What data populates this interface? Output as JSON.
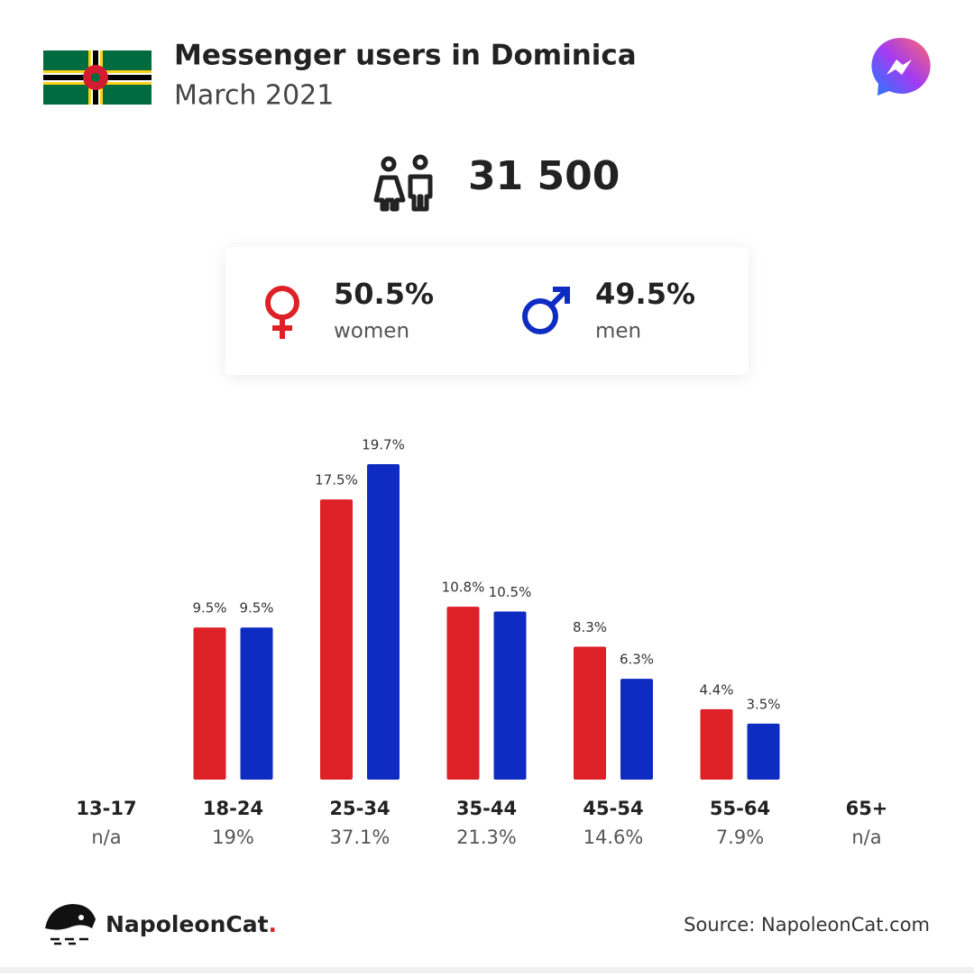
{
  "header": {
    "title": "Messenger users in Dominica",
    "subtitle": "March 2021"
  },
  "total": "31 500",
  "gender": {
    "women": {
      "share": "50.5%",
      "label": "women"
    },
    "men": {
      "share": "49.5%",
      "label": "men"
    }
  },
  "chart_data": {
    "type": "bar",
    "categories": [
      "13-17",
      "18-24",
      "25-34",
      "35-44",
      "45-54",
      "55-64",
      "65+"
    ],
    "category_totals": [
      "n/a",
      "19%",
      "37.1%",
      "21.3%",
      "14.6%",
      "7.9%",
      "n/a"
    ],
    "series": [
      {
        "name": "women",
        "color": "#de2027",
        "values": [
          null,
          9.5,
          17.5,
          10.8,
          8.3,
          4.4,
          null
        ],
        "value_labels": [
          null,
          "9.5%",
          "17.5%",
          "10.8%",
          "8.3%",
          "4.4%",
          null
        ]
      },
      {
        "name": "men",
        "color": "#0f2cc2",
        "values": [
          null,
          9.5,
          19.7,
          10.5,
          6.3,
          3.5,
          null
        ],
        "value_labels": [
          null,
          "9.5%",
          "19.7%",
          "10.5%",
          "6.3%",
          "3.5%",
          null
        ]
      }
    ]
  },
  "footer": {
    "brand": "NapoleonCat",
    "brand_mark": ".",
    "source": "Source: NapoleonCat.com"
  }
}
